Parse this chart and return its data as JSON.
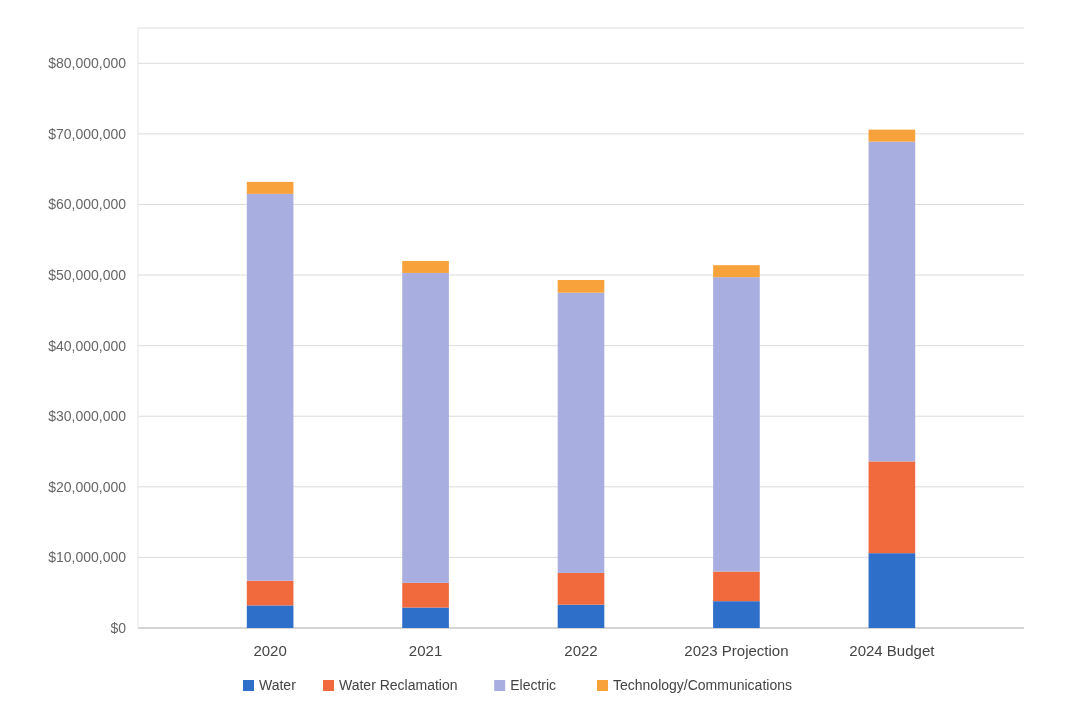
{
  "chart_data": {
    "type": "bar",
    "stacked": true,
    "categories": [
      "2020",
      "2021",
      "2022",
      "2023 Projection",
      "2024 Budget"
    ],
    "series": [
      {
        "name": "Water",
        "color": "#2e6fc9",
        "values": [
          3200000,
          2900000,
          3300000,
          3800000,
          10600000
        ]
      },
      {
        "name": "Water Reclamation",
        "color": "#f06a3e",
        "values": [
          3500000,
          3500000,
          4500000,
          4200000,
          13000000
        ]
      },
      {
        "name": "Electric",
        "color": "#a9aee0",
        "values": [
          54800000,
          43900000,
          39700000,
          41700000,
          45300000
        ]
      },
      {
        "name": "Technology/Communications",
        "color": "#f7a23a",
        "values": [
          1700000,
          1700000,
          1800000,
          1700000,
          1700000
        ]
      }
    ],
    "ylim": [
      0,
      85000000
    ],
    "yticks": [
      {
        "value": 0,
        "label": "$0"
      },
      {
        "value": 10000000,
        "label": "$10,000,000"
      },
      {
        "value": 20000000,
        "label": "$20,000,000"
      },
      {
        "value": 30000000,
        "label": "$30,000,000"
      },
      {
        "value": 40000000,
        "label": "$40,000,000"
      },
      {
        "value": 50000000,
        "label": "$50,000,000"
      },
      {
        "value": 60000000,
        "label": "$60,000,000"
      },
      {
        "value": 70000000,
        "label": "$70,000,000"
      },
      {
        "value": 80000000,
        "label": "$80,000,000"
      }
    ],
    "grid": "y",
    "legend": "bottom"
  }
}
